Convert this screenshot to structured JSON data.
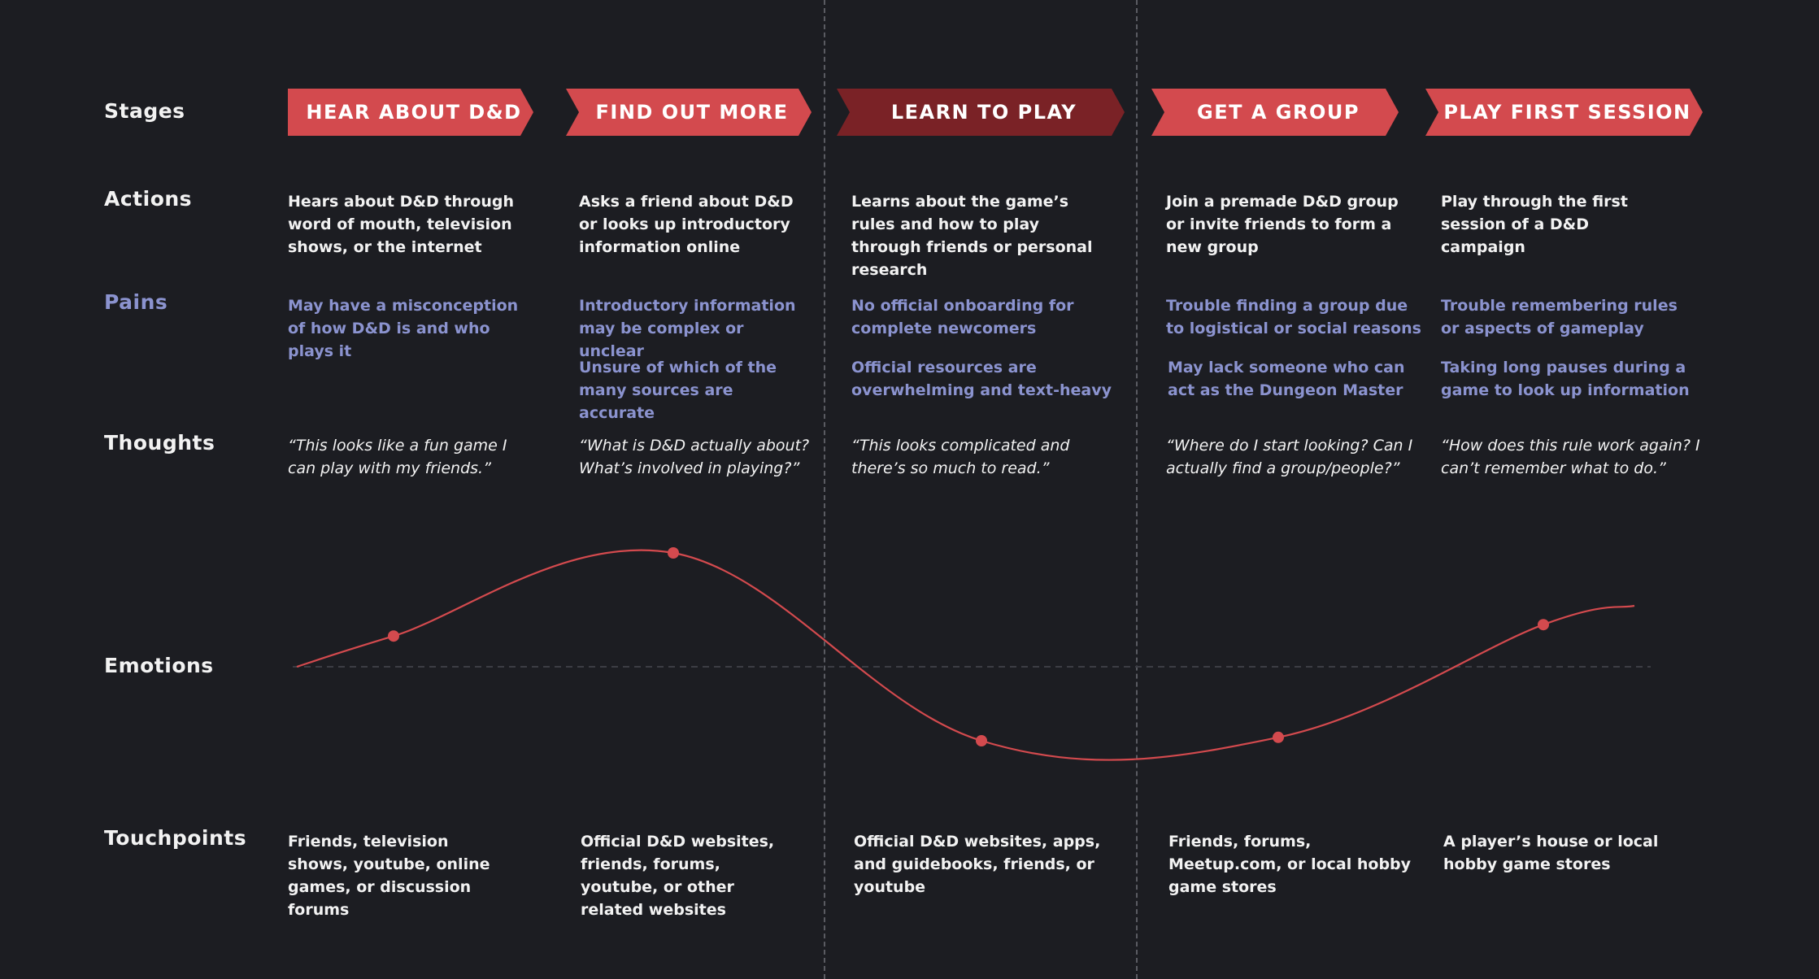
{
  "labels": {
    "stages": "Stages",
    "actions": "Actions",
    "pains": "Pains",
    "thoughts": "Thoughts",
    "emotions": "Emotions",
    "touchpoints": "Touchpoints"
  },
  "colors": {
    "background": "#1c1d22",
    "stage": "#d34a4e",
    "stage_active": "#7a2226",
    "pain_text": "#8b93cf",
    "curve": "#d34a4e",
    "divider": "#5a5b62"
  },
  "stages": [
    {
      "name": "HEAR ABOUT D&D",
      "active": false,
      "action": "Hears about D&D through word of mouth, television shows, or the internet",
      "pains": [
        "May have a misconception of how D&D is and who plays it"
      ],
      "thought": "“This looks like a fun game I can play with my friends.”",
      "touchpoints": "Friends, television shows, youtube, online games, or discussion forums"
    },
    {
      "name": "FIND OUT MORE",
      "active": false,
      "action": "Asks a friend about D&D or looks up introductory information online",
      "pains": [
        "Introductory information may be complex or unclear",
        "Unsure of which of the many sources are accurate"
      ],
      "thought": "“What is D&D actually about? What’s involved in playing?”",
      "touchpoints": "Official D&D websites, friends, forums, youtube, or other related websites"
    },
    {
      "name": "LEARN TO PLAY",
      "active": true,
      "action": "Learns about the game’s rules and how to play through friends or personal research",
      "pains": [
        "No official onboarding for complete newcomers",
        "Official resources are overwhelming and text-heavy"
      ],
      "thought": "“This looks complicated and there’s so much to read.”",
      "touchpoints": "Official D&D websites, apps, and guidebooks, friends, or youtube"
    },
    {
      "name": "GET A GROUP",
      "active": false,
      "action": "Join a premade D&D group or invite friends to form a new group",
      "pains": [
        "Trouble finding a group due to logistical or social reasons",
        "May lack someone who can act as the Dungeon Master"
      ],
      "thought": "“Where do I start looking? Can I actually find a group/people?”",
      "touchpoints": "Friends, forums, Meetup.com, or local hobby game stores"
    },
    {
      "name": "PLAY FIRST SESSION",
      "active": false,
      "action": "Play through the first session of a D&D campaign",
      "pains": [
        "Trouble remembering rules or aspects of gameplay",
        "Taking long pauses during a game to look up information"
      ],
      "thought": "“How does this rule work again? I can’t remember what to do.”",
      "touchpoints": "A player’s house or local hobby game stores"
    }
  ],
  "emotion_points": [
    {
      "stage": "HEAR ABOUT D&D",
      "level": 0.27
    },
    {
      "stage": "FIND OUT MORE",
      "level": 1.0
    },
    {
      "stage": "LEARN TO PLAY",
      "level": -0.65
    },
    {
      "stage": "GET A GROUP",
      "level": -0.62
    },
    {
      "stage": "PLAY FIRST SESSION",
      "level": 0.37
    }
  ]
}
